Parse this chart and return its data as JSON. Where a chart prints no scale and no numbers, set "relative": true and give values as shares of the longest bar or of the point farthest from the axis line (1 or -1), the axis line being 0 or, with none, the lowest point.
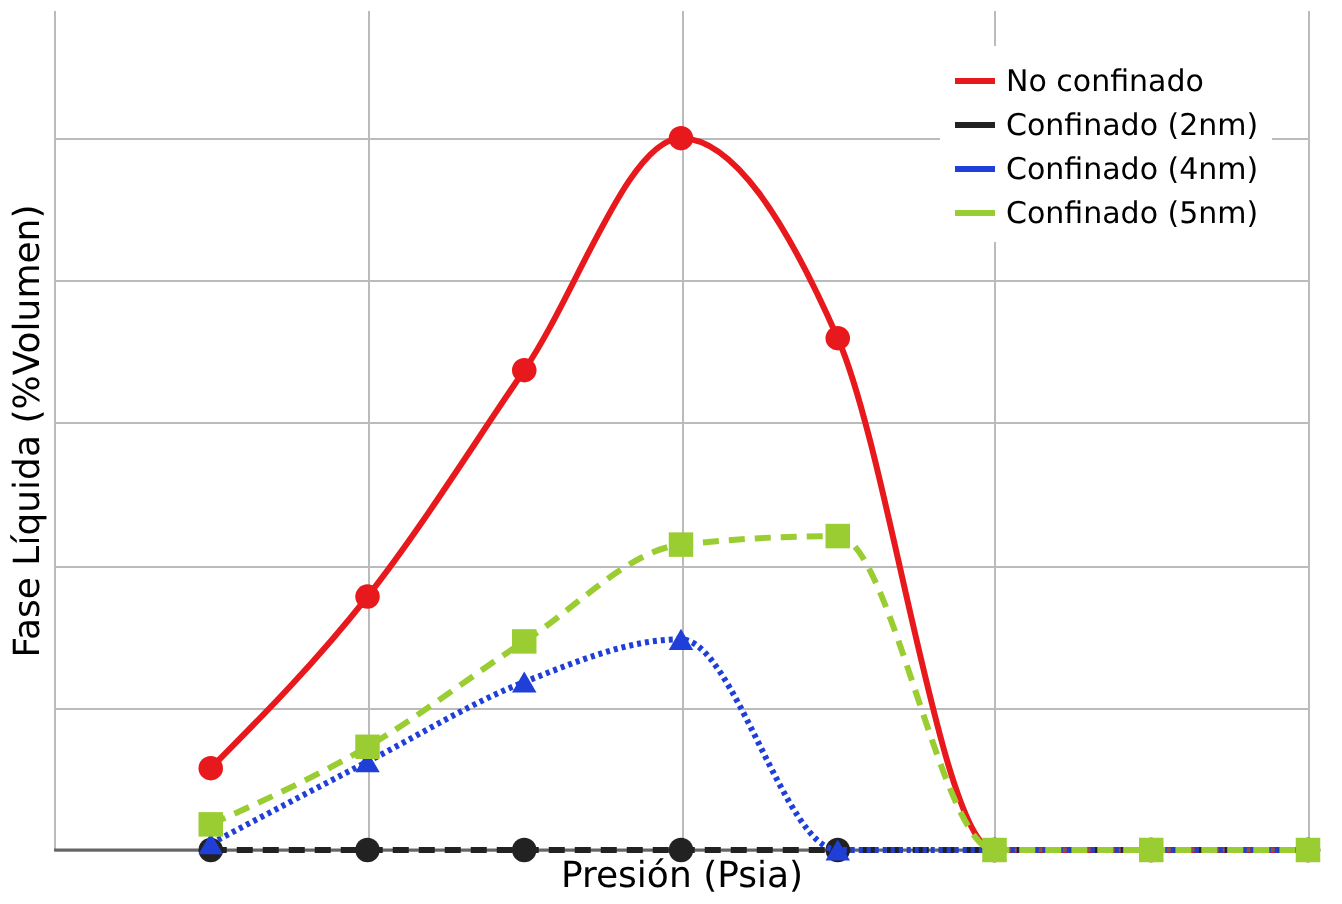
{
  "chart_data": {
    "type": "line",
    "relative": true,
    "xlabel": "Presión (Psia)",
    "ylabel": "Fase Líquida (%Volumen)",
    "categories": [
      null,
      null,
      null,
      null,
      null,
      null,
      null,
      null
    ],
    "grid": true,
    "legend": "top right",
    "series": [
      {
        "name": "No confinado",
        "color": "#e8191c",
        "marker": "circle",
        "line_style": "solid",
        "values": [
          0.115,
          0.356,
          0.674,
          1,
          0.719,
          0,
          0,
          0
        ]
      },
      {
        "name": "Confinado (2nm)",
        "color": "#222222",
        "marker": "circle",
        "line_style": "dashed",
        "values": [
          0,
          0,
          0,
          0,
          0,
          0,
          0,
          0
        ]
      },
      {
        "name": "Confinado (4nm)",
        "color": "#1f3fd8",
        "marker": "triangle",
        "line_style": "dotted",
        "values": [
          0.009,
          0.124,
          0.236,
          0.296,
          0,
          0,
          0,
          0
        ]
      },
      {
        "name": "Confinado (5nm)",
        "color": "#9acd32",
        "marker": "square",
        "line_style": "dashed",
        "values": [
          0.036,
          0.145,
          0.293,
          0.429,
          0.441,
          0,
          0,
          0
        ]
      }
    ]
  }
}
